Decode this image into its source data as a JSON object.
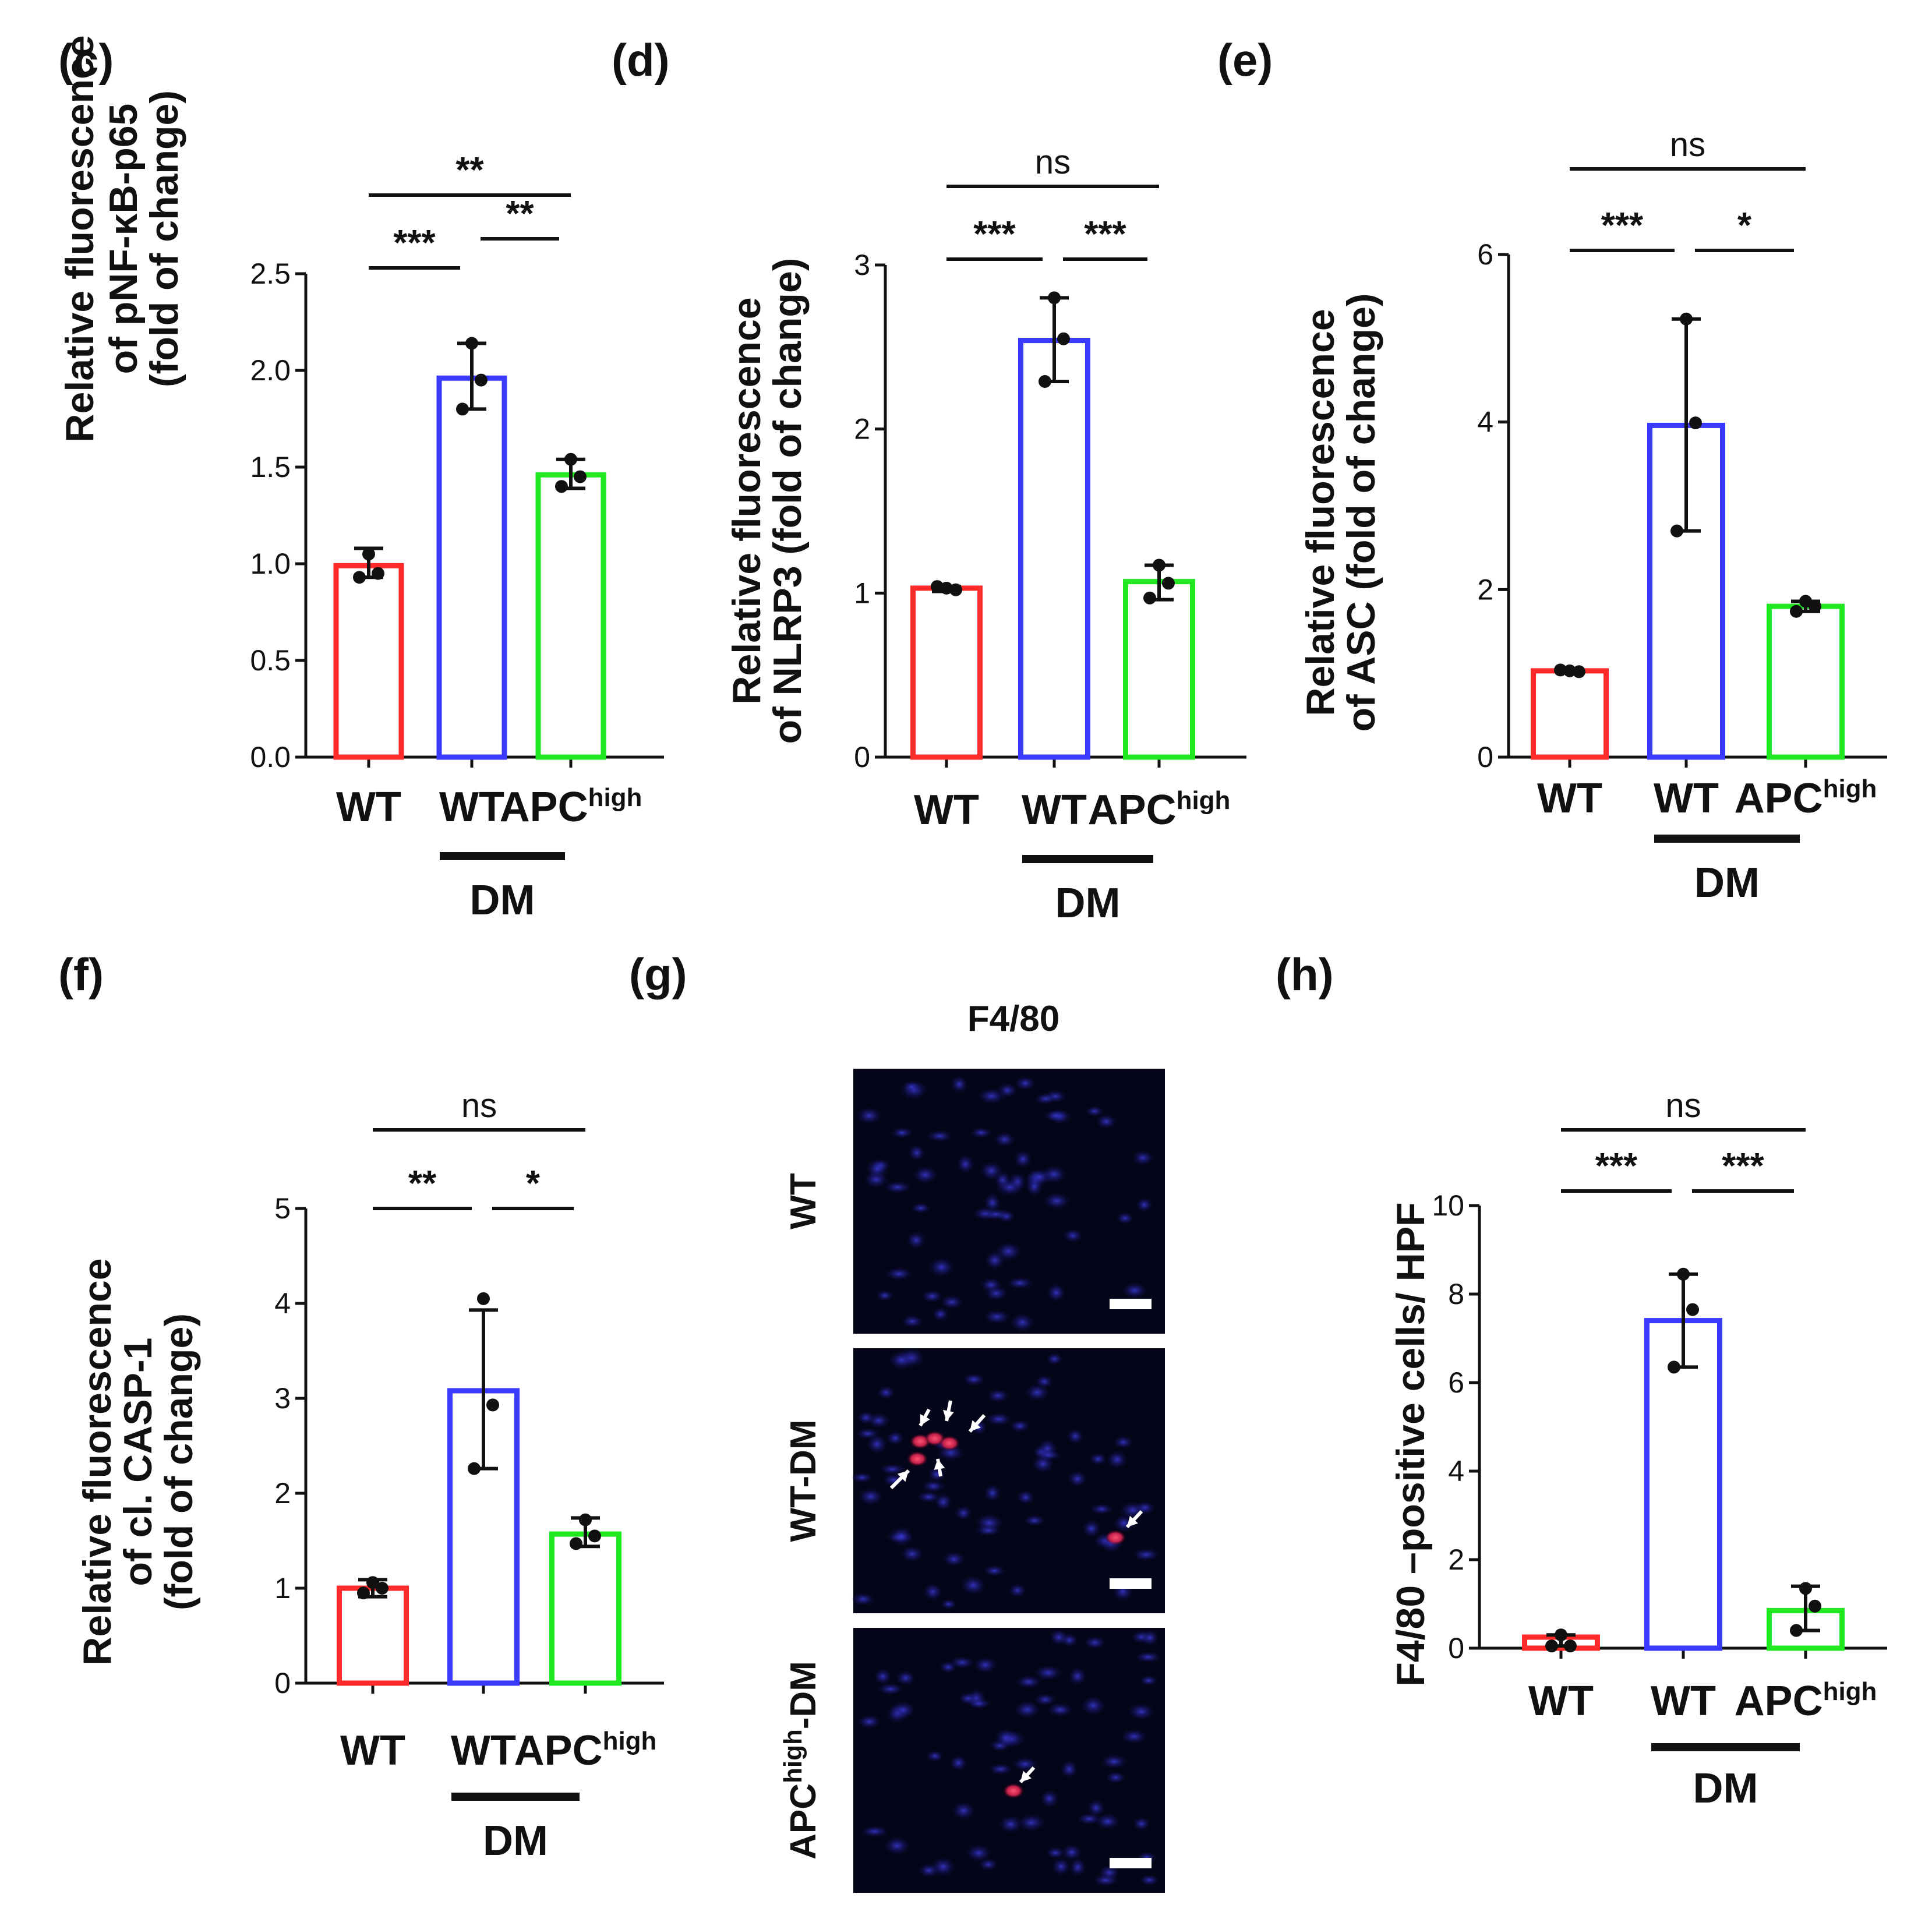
{
  "colors": {
    "wt": "#ff2a2a",
    "wt_dm": "#3a3aff",
    "apc_dm": "#22e822",
    "axis": "#111111"
  },
  "chart_data": [
    {
      "panel": "(c)",
      "type": "bar",
      "ylabel": [
        "Relative fluorescence",
        "of pNF-κB-p65",
        "(fold of change)"
      ],
      "ylim": [
        0,
        2.5
      ],
      "yticks": [
        "0.0",
        "0.5",
        "1.0",
        "1.5",
        "2.0",
        "2.5"
      ],
      "categories": [
        {
          "main": "WT",
          "sup": ""
        },
        {
          "main": "WT",
          "sup": ""
        },
        {
          "main": "APC",
          "sup": "high"
        }
      ],
      "group_label": "DM",
      "values": [
        0.99,
        1.96,
        1.46
      ],
      "err_high": [
        1.08,
        2.14,
        1.54
      ],
      "err_low": [
        0.93,
        1.8,
        1.39
      ],
      "points": [
        [
          1.05,
          0.93,
          0.95
        ],
        [
          2.14,
          1.8,
          1.95
        ],
        [
          1.54,
          1.4,
          1.45
        ]
      ],
      "significance": [
        {
          "label": "***",
          "from": 0,
          "to": 1
        },
        {
          "label": "**",
          "from": 1,
          "to": 2
        },
        {
          "label": "**",
          "from": 0,
          "to": 2
        }
      ]
    },
    {
      "panel": "(d)",
      "type": "bar",
      "ylabel": [
        "Relative fluorescence",
        "of NLRP3  (fold of change)"
      ],
      "ylim": [
        0,
        3
      ],
      "yticks": [
        "0",
        "1",
        "2",
        "3"
      ],
      "categories": [
        {
          "main": "WT",
          "sup": ""
        },
        {
          "main": "WT",
          "sup": ""
        },
        {
          "main": "APC",
          "sup": "high"
        }
      ],
      "group_label": "DM",
      "values": [
        1.03,
        2.54,
        1.07
      ],
      "err_high": [
        1.04,
        2.8,
        1.17
      ],
      "err_low": [
        1.01,
        2.29,
        0.96
      ],
      "points": [
        [
          1.03,
          1.04,
          1.02
        ],
        [
          2.8,
          2.29,
          2.55
        ],
        [
          1.17,
          0.97,
          1.06
        ]
      ],
      "significance": [
        {
          "label": "***",
          "from": 0,
          "to": 1
        },
        {
          "label": "***",
          "from": 1,
          "to": 2
        },
        {
          "label": "ns",
          "from": 0,
          "to": 2
        }
      ]
    },
    {
      "panel": "(e)",
      "type": "bar",
      "ylabel": [
        "Relative fluorescence",
        "of ASC (fold of change)"
      ],
      "ylim": [
        0,
        6
      ],
      "yticks": [
        "0",
        "2",
        "4",
        "6"
      ],
      "categories": [
        {
          "main": "WT",
          "sup": ""
        },
        {
          "main": "WT",
          "sup": ""
        },
        {
          "main": "APC",
          "sup": "high"
        }
      ],
      "group_label": "DM",
      "values": [
        1.03,
        3.96,
        1.8
      ],
      "err_high": [
        1.05,
        5.23,
        1.86
      ],
      "err_low": [
        1.01,
        2.7,
        1.74
      ],
      "points": [
        [
          1.03,
          1.04,
          1.02
        ],
        [
          5.23,
          2.7,
          3.99
        ],
        [
          1.86,
          1.74,
          1.8
        ]
      ],
      "significance": [
        {
          "label": "***",
          "from": 0,
          "to": 1
        },
        {
          "label": "*",
          "from": 1,
          "to": 2
        },
        {
          "label": "ns",
          "from": 0,
          "to": 2
        }
      ]
    },
    {
      "panel": "(f)",
      "type": "bar",
      "ylabel": [
        "Relative fluorescence",
        "of cl. CASP-1",
        "(fold of change)"
      ],
      "ylim": [
        0,
        5
      ],
      "yticks": [
        "0",
        "1",
        "2",
        "3",
        "4",
        "5"
      ],
      "categories": [
        {
          "main": "WT",
          "sup": ""
        },
        {
          "main": "WT",
          "sup": ""
        },
        {
          "main": "APC",
          "sup": "high"
        }
      ],
      "group_label": "DM",
      "values": [
        1.0,
        3.08,
        1.57
      ],
      "err_high": [
        1.09,
        3.93,
        1.74
      ],
      "err_low": [
        0.91,
        2.26,
        1.44
      ],
      "points": [
        [
          1.06,
          0.95,
          1.0
        ],
        [
          4.05,
          2.26,
          2.93
        ],
        [
          1.72,
          1.47,
          1.55
        ]
      ],
      "significance": [
        {
          "label": "**",
          "from": 0,
          "to": 1
        },
        {
          "label": "*",
          "from": 1,
          "to": 2
        },
        {
          "label": "ns",
          "from": 0,
          "to": 2
        }
      ]
    },
    {
      "panel": "(h)",
      "type": "bar",
      "ylabel": [
        "F4/80 –positive cells/ HPF"
      ],
      "ylim": [
        0,
        10
      ],
      "yticks": [
        "0",
        "2",
        "4",
        "6",
        "8",
        "10"
      ],
      "categories": [
        {
          "main": "WT",
          "sup": ""
        },
        {
          "main": "WT",
          "sup": ""
        },
        {
          "main": "APC",
          "sup": "high"
        }
      ],
      "group_label": "DM",
      "values": [
        0.25,
        7.4,
        0.85
      ],
      "err_high": [
        0.3,
        8.45,
        1.4
      ],
      "err_low": [
        0.05,
        6.35,
        0.4
      ],
      "points": [
        [
          0.3,
          0.05,
          0.05
        ],
        [
          8.45,
          6.35,
          7.65
        ],
        [
          1.35,
          0.4,
          0.95
        ]
      ],
      "significance": [
        {
          "label": "***",
          "from": 0,
          "to": 1
        },
        {
          "label": "***",
          "from": 1,
          "to": 2
        },
        {
          "label": "ns",
          "from": 0,
          "to": 2
        }
      ]
    }
  ],
  "micrographs": {
    "panel": "(g)",
    "title": "F4/80",
    "rows": [
      {
        "label": "WT",
        "sup": "",
        "suffix": "",
        "arrows": 0
      },
      {
        "label": "WT-DM",
        "sup": "",
        "suffix": "",
        "arrows": 6
      },
      {
        "label": "APC",
        "sup": "high",
        "suffix": "-DM",
        "arrows": 1
      }
    ]
  }
}
